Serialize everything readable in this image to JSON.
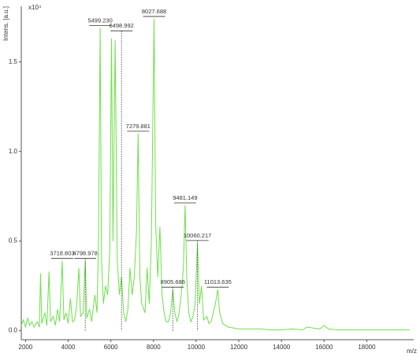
{
  "chart_data": {
    "type": "line",
    "y_label": "Intens. [a.u.]",
    "y_scale_label": "x10⁴",
    "x_label": "m/z",
    "color": "#6ee04a",
    "xlim": [
      1800,
      20200
    ],
    "ylim": [
      -0.05,
      1.81
    ],
    "xticks": [
      2000,
      4000,
      6000,
      8000,
      10000,
      12000,
      14000,
      16000,
      18000
    ],
    "yticks": [
      {
        "value": 0,
        "label": "0.0"
      },
      {
        "value": 0.5,
        "label": "0.5"
      },
      {
        "value": 1,
        "label": "1.0"
      },
      {
        "value": 1.5,
        "label": "1.5"
      }
    ],
    "x": [
      1800,
      1900,
      2000,
      2100,
      2200,
      2300,
      2400,
      2550,
      2650,
      2700,
      2760,
      2900,
      3000,
      3100,
      3170,
      3300,
      3400,
      3500,
      3600,
      3718,
      3800,
      3900,
      4000,
      4100,
      4200,
      4300,
      4400,
      4500,
      4580,
      4700,
      4800,
      4870,
      5000,
      5100,
      5250,
      5350,
      5420,
      5499,
      5560,
      5650,
      5750,
      5850,
      5950,
      6030,
      6100,
      6200,
      6300,
      6400,
      6500,
      6600,
      6700,
      6800,
      6900,
      7000,
      7100,
      7200,
      7280,
      7360,
      7450,
      7600,
      7700,
      7800,
      7900,
      8027,
      8100,
      8200,
      8300,
      8400,
      8500,
      8600,
      8700,
      8800,
      8906,
      9000,
      9100,
      9200,
      9300,
      9400,
      9481,
      9560,
      9650,
      9750,
      9850,
      9950,
      10060,
      10150,
      10250,
      10350,
      10500,
      10600,
      10700,
      10800,
      10900,
      11014,
      11100,
      11250,
      11500,
      12000,
      12500,
      13000,
      13500,
      14000,
      14500,
      15000,
      15200,
      15500,
      15800,
      16000,
      16200,
      16600,
      17000,
      18000,
      19000,
      20000
    ],
    "values": [
      0.03,
      0.06,
      0.02,
      0.07,
      0.03,
      0.05,
      0.02,
      0.05,
      0.02,
      0.32,
      0.04,
      0.1,
      0.03,
      0.33,
      0.05,
      0.08,
      0.03,
      0.12,
      0.05,
      0.39,
      0.06,
      0.1,
      0.04,
      0.18,
      0.05,
      0.06,
      0.15,
      0.35,
      0.08,
      0.1,
      0.39,
      0.07,
      0.12,
      0.05,
      0.2,
      0.1,
      0.5,
      1.69,
      0.4,
      0.15,
      0.25,
      0.2,
      0.45,
      1.63,
      0.5,
      1.62,
      0.4,
      0.2,
      0.3,
      0.1,
      0.05,
      0.12,
      0.35,
      0.2,
      0.3,
      0.55,
      1.1,
      0.3,
      0.15,
      0.1,
      0.35,
      0.15,
      0.5,
      1.74,
      0.6,
      0.3,
      0.58,
      0.2,
      0.1,
      0.05,
      0.05,
      0.1,
      0.23,
      0.1,
      0.05,
      0.1,
      0.2,
      0.35,
      0.7,
      0.3,
      0.1,
      0.05,
      0.08,
      0.15,
      0.49,
      0.15,
      0.25,
      0.06,
      0.08,
      0.04,
      0.05,
      0.1,
      0.15,
      0.23,
      0.1,
      0.04,
      0.02,
      0.01,
      0.01,
      0.01,
      0.005,
      0.005,
      0.01,
      0.005,
      0.02,
      0.015,
      0.01,
      0.03,
      0.01,
      0.005,
      0.005,
      0.005,
      0.005,
      0.005
    ],
    "annotations": [
      {
        "text": "3718.803",
        "x": 3718.803,
        "y": 0.39,
        "dotted": false
      },
      {
        "text": "4798.978",
        "x": 4798.978,
        "y": 0.39,
        "dotted": true
      },
      {
        "text": "5499.230",
        "x": 5499.23,
        "y": 1.69,
        "dotted": false
      },
      {
        "text": "6498.992",
        "x": 6498.992,
        "y": 1.66,
        "dotted": true
      },
      {
        "text": "7279.881",
        "x": 7279.881,
        "y": 1.1,
        "dotted": false
      },
      {
        "text": "8027.688",
        "x": 8027.688,
        "y": 1.74,
        "dotted": false
      },
      {
        "text": "8905.686",
        "x": 8905.686,
        "y": 0.23,
        "dotted": true
      },
      {
        "text": "9481.149",
        "x": 9481.149,
        "y": 0.7,
        "dotted": false
      },
      {
        "text": "10060.217",
        "x": 10060.217,
        "y": 0.49,
        "dotted": true
      },
      {
        "text": "11013.635",
        "x": 11013.635,
        "y": 0.23,
        "dotted": false
      }
    ]
  }
}
